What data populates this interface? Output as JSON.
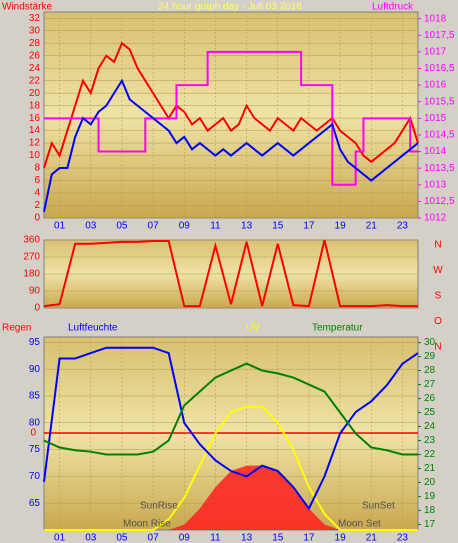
{
  "chart_data": [
    {
      "type": "line",
      "title": "24 hour graph day - Juli 03 2016",
      "y_label": "Windstärke",
      "y2_label": "Luftdruck",
      "x": [
        0,
        0.5,
        1,
        1.5,
        2,
        2.5,
        3,
        3.5,
        4,
        4.5,
        5,
        5.5,
        6,
        6.5,
        7,
        7.5,
        8,
        8.5,
        9,
        9.5,
        10,
        10.5,
        11,
        11.5,
        12,
        12.5,
        13,
        13.5,
        14,
        14.5,
        15,
        15.5,
        16,
        16.5,
        17,
        17.5,
        18,
        18.5,
        19,
        19.5,
        20,
        20.5,
        21,
        21.5,
        22,
        22.5,
        23,
        23.5,
        24
      ],
      "xlim": [
        0,
        24
      ],
      "xticks": [
        {
          "value": 1,
          "label": "01"
        },
        {
          "value": 3,
          "label": "03"
        },
        {
          "value": 5,
          "label": "05"
        },
        {
          "value": 7,
          "label": "07"
        },
        {
          "value": 9,
          "label": "09"
        },
        {
          "value": 11,
          "label": "11"
        },
        {
          "value": 13,
          "label": "13"
        },
        {
          "value": 15,
          "label": "15"
        },
        {
          "value": 17,
          "label": "17"
        },
        {
          "value": 19,
          "label": "19"
        },
        {
          "value": 21,
          "label": "21"
        },
        {
          "value": 23,
          "label": "23"
        }
      ],
      "ylim": [
        0,
        33
      ],
      "yticks": [
        0,
        2,
        4,
        6,
        8,
        10,
        12,
        14,
        16,
        18,
        20,
        22,
        24,
        26,
        28,
        30,
        32
      ],
      "y2lim": [
        1012,
        1018.2
      ],
      "y2ticks": [
        1012,
        {
          "value": 1012.5,
          "label": "1012,5"
        },
        1013,
        {
          "value": 1013.5,
          "label": "1013,5"
        },
        1014,
        {
          "value": 1014.5,
          "label": "1014,5"
        },
        1015,
        {
          "value": 1015.5,
          "label": "1015,5"
        },
        1016,
        {
          "value": 1016.5,
          "label": "1016,5"
        },
        1017,
        {
          "value": 1017.5,
          "label": "1017,5"
        },
        1018
      ],
      "series": [
        {
          "color": "#ff0000",
          "values": [
            8,
            12,
            10,
            14,
            18,
            22,
            20,
            24,
            26,
            25,
            28,
            27,
            24,
            22,
            20,
            18,
            16,
            18,
            17,
            15,
            16,
            14,
            15,
            16,
            14,
            15,
            18,
            16,
            15,
            14,
            16,
            15,
            14,
            16,
            15,
            14,
            15,
            16,
            14,
            13,
            12,
            10,
            9,
            10,
            11,
            12,
            14,
            16,
            12
          ]
        },
        {
          "color": "#ff00ff",
          "axis": "y2",
          "style": "step",
          "values": [
            1015,
            1015,
            1015,
            1015,
            1015,
            1015,
            1015,
            1014,
            1014,
            1014,
            1014,
            1014,
            1014,
            1015,
            1015,
            1015,
            1015,
            1016,
            1016,
            1016,
            1016,
            1017,
            1017,
            1017,
            1017,
            1017,
            1017,
            1017,
            1017,
            1017,
            1017,
            1017,
            1017,
            1016,
            1016,
            1016,
            1016,
            1013,
            1013,
            1013,
            1014,
            1015,
            1015,
            1015,
            1015,
            1015,
            1015,
            1014,
            1014
          ]
        },
        {
          "color": "#0000ff",
          "values": [
            1,
            7,
            8,
            8,
            13,
            16,
            15,
            17,
            18,
            20,
            22,
            19,
            18,
            17,
            16,
            15,
            14,
            12,
            13,
            11,
            12,
            11,
            10,
            11,
            10,
            11,
            12,
            11,
            10,
            11,
            12,
            11,
            10,
            11,
            12,
            13,
            14,
            15,
            11,
            9,
            8,
            7,
            6,
            7,
            8,
            9,
            10,
            11,
            12
          ]
        }
      ]
    },
    {
      "type": "line",
      "x": [
        0,
        1,
        2,
        3,
        4,
        5,
        6,
        7,
        8,
        9,
        10,
        11,
        12,
        13,
        14,
        15,
        16,
        17,
        18,
        19,
        20,
        21,
        22,
        23,
        24
      ],
      "xlim": [
        0,
        24
      ],
      "ylim": [
        0,
        360
      ],
      "yticks": [
        0,
        90,
        180,
        270,
        360
      ],
      "direction_labels": [
        "N",
        "W",
        "S",
        "O",
        "N"
      ],
      "series": [
        {
          "color": "#ff0000",
          "values": [
            10,
            20,
            340,
            340,
            345,
            350,
            350,
            355,
            355,
            10,
            10,
            330,
            20,
            350,
            10,
            340,
            15,
            10,
            360,
            10,
            10,
            10,
            15,
            10,
            10
          ]
        }
      ]
    },
    {
      "type": "line",
      "x": [
        0,
        1,
        2,
        3,
        4,
        5,
        6,
        7,
        8,
        9,
        10,
        11,
        12,
        13,
        14,
        15,
        16,
        17,
        18,
        19,
        20,
        21,
        22,
        23,
        24
      ],
      "xlim": [
        0,
        24
      ],
      "xticks": [
        {
          "value": 1,
          "label": "01"
        },
        {
          "value": 3,
          "label": "03"
        },
        {
          "value": 5,
          "label": "05"
        },
        {
          "value": 7,
          "label": "07"
        },
        {
          "value": 9,
          "label": "09"
        },
        {
          "value": 11,
          "label": "11"
        },
        {
          "value": 13,
          "label": "13"
        },
        {
          "value": 15,
          "label": "15"
        },
        {
          "value": 17,
          "label": "17"
        },
        {
          "value": 19,
          "label": "19"
        },
        {
          "value": 21,
          "label": "21"
        },
        {
          "value": 23,
          "label": "23"
        }
      ],
      "ylim": [
        60,
        96
      ],
      "yticks": [
        65,
        70,
        75,
        80,
        85,
        90,
        95
      ],
      "y2lim": [
        16.6,
        30.4
      ],
      "y2ticks": [
        17,
        18,
        19,
        20,
        21,
        22,
        23,
        24,
        25,
        26,
        27,
        28,
        29,
        30
      ],
      "y3ticks": [
        0
      ],
      "series": [
        {
          "name": "Regen",
          "color": "#ff0000",
          "axis": "y3",
          "values": [
            0,
            0,
            0,
            0,
            0,
            0,
            0,
            0,
            0,
            0,
            0,
            0,
            0,
            0,
            0,
            0,
            0,
            0,
            0,
            0,
            0,
            0,
            0,
            0,
            0
          ]
        },
        {
          "color": "#ff2020",
          "style": "area",
          "values": [
            60,
            60,
            60,
            60,
            60,
            60,
            60,
            60,
            60,
            61,
            64,
            68,
            71,
            72,
            72,
            71,
            68,
            64,
            61,
            60,
            60,
            60,
            60,
            60,
            60
          ]
        },
        {
          "name": "UV",
          "color": "#ffff00",
          "values": [
            60,
            60,
            60,
            60,
            60,
            60,
            60,
            60,
            62,
            66,
            72,
            78,
            82,
            83,
            83,
            80,
            75,
            68,
            63,
            60,
            60,
            60,
            60,
            60,
            60
          ]
        },
        {
          "name": "Luftfeuchte",
          "color": "#0000ff",
          "values": [
            69,
            92,
            92,
            93,
            94,
            94,
            94,
            94,
            93,
            80,
            76,
            73,
            71,
            70,
            72,
            71,
            68,
            64,
            70,
            78,
            82,
            84,
            87,
            91,
            93
          ]
        },
        {
          "name": "Temperatur",
          "color": "#008000",
          "axis": "y2",
          "values": [
            23,
            22.5,
            22.3,
            22.2,
            22,
            22,
            22,
            22.2,
            23,
            25.5,
            26.5,
            27.5,
            28,
            28.5,
            28,
            27.8,
            27.5,
            27,
            26.5,
            25,
            23.5,
            22.5,
            22.3,
            22,
            22
          ]
        }
      ],
      "annotations": [
        "SunRise",
        "Moon Rise",
        "SunSet",
        "Moon Set"
      ]
    }
  ]
}
